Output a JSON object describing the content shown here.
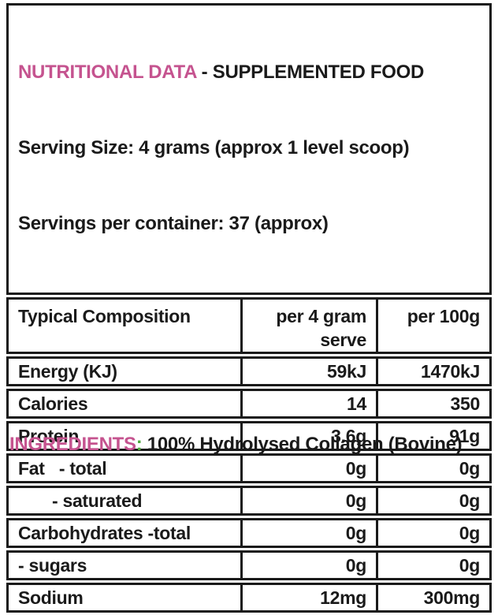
{
  "colors": {
    "accent_pink": "#c5538f",
    "accent_green": "#4da83c",
    "text_black": "#1a1a1a",
    "background": "#ffffff",
    "border": "#1a1a1a"
  },
  "header": {
    "brand_title": "NUTRITIONAL DATA",
    "separator": " - ",
    "subtitle": "SUPPLEMENTED FOOD",
    "serving_size": "Serving Size: 4 grams (approx 1 level scoop)",
    "servings_per_container": "Servings per container: 37 (approx)"
  },
  "table": {
    "columns": [
      "Typical Composition",
      "per 4 gram serve",
      "per 100g"
    ],
    "rows": [
      {
        "label": "Energy (KJ)",
        "per_serve": "59kJ",
        "per_100g": "1470kJ"
      },
      {
        "label": "Calories",
        "per_serve": "14",
        "per_100g": "350"
      },
      {
        "label": "Protein",
        "per_serve": "3.6g",
        "per_100g": "91g"
      },
      {
        "label": "Fat   - total",
        "per_serve": "0g",
        "per_100g": "0g"
      },
      {
        "label": "- saturated",
        "per_serve": "0g",
        "per_100g": "0g"
      },
      {
        "label": "Carbohydrates -total",
        "per_serve": "0g",
        "per_100g": "0g"
      },
      {
        "label": "- sugars",
        "per_serve": "0g",
        "per_100g": "0g"
      },
      {
        "label": "Sodium",
        "per_serve": "12mg",
        "per_100g": "300mg"
      }
    ]
  },
  "ingredients": {
    "label": "INGREDIENTS",
    "colon": ":",
    "space": " ",
    "value": "100% Hydrolysed Collagen (Bovine)"
  }
}
